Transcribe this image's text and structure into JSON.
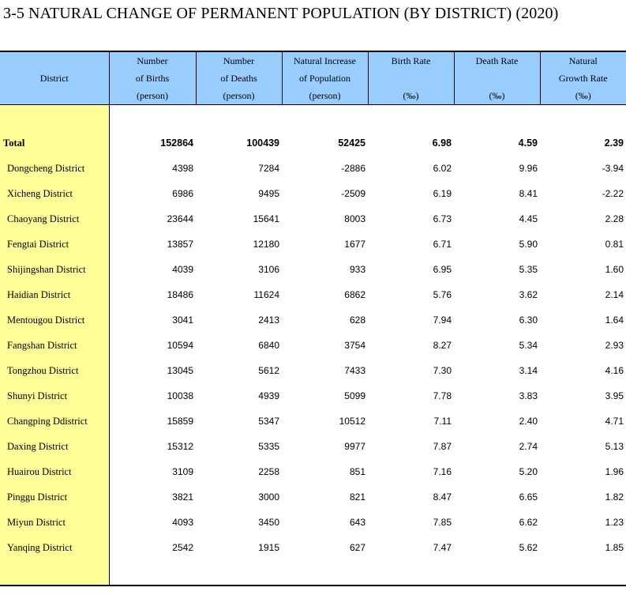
{
  "title": "3-5  NATURAL CHANGE OF PERMANENT POPULATION (BY DISTRICT) (2020)",
  "headers": [
    {
      "lines": [
        "District"
      ]
    },
    {
      "lines": [
        "Number",
        "of Births",
        "(person)"
      ]
    },
    {
      "lines": [
        "Number",
        "of Deaths",
        "(person)"
      ]
    },
    {
      "lines": [
        "Natural Increase",
        "of Population",
        "(person)"
      ]
    },
    {
      "lines": [
        "Birth Rate",
        "",
        "(‰)"
      ]
    },
    {
      "lines": [
        "Death Rate",
        "",
        "(‰)"
      ]
    },
    {
      "lines": [
        "Natural",
        "Growth Rate",
        "(‰)"
      ]
    }
  ],
  "total": {
    "district": "Total",
    "births": "152864",
    "deaths": "100439",
    "increase": "52425",
    "birth_rate": "6.98",
    "death_rate": "4.59",
    "growth_rate": "2.39"
  },
  "rows": [
    {
      "district": "Dongcheng District",
      "births": "4398",
      "deaths": "7284",
      "increase": "-2886",
      "birth_rate": "6.02",
      "death_rate": "9.96",
      "growth_rate": "-3.94"
    },
    {
      "district": "Xicheng District",
      "births": "6986",
      "deaths": "9495",
      "increase": "-2509",
      "birth_rate": "6.19",
      "death_rate": "8.41",
      "growth_rate": "-2.22"
    },
    {
      "district": "Chaoyang District",
      "births": "23644",
      "deaths": "15641",
      "increase": "8003",
      "birth_rate": "6.73",
      "death_rate": "4.45",
      "growth_rate": "2.28"
    },
    {
      "district": "Fengtai District",
      "births": "13857",
      "deaths": "12180",
      "increase": "1677",
      "birth_rate": "6.71",
      "death_rate": "5.90",
      "growth_rate": "0.81"
    },
    {
      "district": "Shijingshan District",
      "births": "4039",
      "deaths": "3106",
      "increase": "933",
      "birth_rate": "6.95",
      "death_rate": "5.35",
      "growth_rate": "1.60"
    },
    {
      "district": "Haidian District",
      "births": "18486",
      "deaths": "11624",
      "increase": "6862",
      "birth_rate": "5.76",
      "death_rate": "3.62",
      "growth_rate": "2.14"
    },
    {
      "district": "Mentougou District",
      "births": "3041",
      "deaths": "2413",
      "increase": "628",
      "birth_rate": "7.94",
      "death_rate": "6.30",
      "growth_rate": "1.64"
    },
    {
      "district": "Fangshan District",
      "births": "10594",
      "deaths": "6840",
      "increase": "3754",
      "birth_rate": "8.27",
      "death_rate": "5.34",
      "growth_rate": "2.93"
    },
    {
      "district": "Tongzhou District",
      "births": "13045",
      "deaths": "5612",
      "increase": "7433",
      "birth_rate": "7.30",
      "death_rate": "3.14",
      "growth_rate": "4.16"
    },
    {
      "district": "Shunyi District",
      "births": "10038",
      "deaths": "4939",
      "increase": "5099",
      "birth_rate": "7.78",
      "death_rate": "3.83",
      "growth_rate": "3.95"
    },
    {
      "district": "Changping Ddistrict",
      "births": "15859",
      "deaths": "5347",
      "increase": "10512",
      "birth_rate": "7.11",
      "death_rate": "2.40",
      "growth_rate": "4.71"
    },
    {
      "district": "Daxing District",
      "births": "15312",
      "deaths": "5335",
      "increase": "9977",
      "birth_rate": "7.87",
      "death_rate": "2.74",
      "growth_rate": "5.13"
    },
    {
      "district": "Huairou District",
      "births": "3109",
      "deaths": "2258",
      "increase": "851",
      "birth_rate": "7.16",
      "death_rate": "5.20",
      "growth_rate": "1.96"
    },
    {
      "district": "Pinggu District",
      "births": "3821",
      "deaths": "3000",
      "increase": "821",
      "birth_rate": "8.47",
      "death_rate": "6.65",
      "growth_rate": "1.82"
    },
    {
      "district": "Miyun District",
      "births": "4093",
      "deaths": "3450",
      "increase": "643",
      "birth_rate": "7.85",
      "death_rate": "6.62",
      "growth_rate": "1.23"
    },
    {
      "district": "Yanqing District",
      "births": "2542",
      "deaths": "1915",
      "increase": "627",
      "birth_rate": "7.47",
      "death_rate": "5.62",
      "growth_rate": "1.85"
    }
  ],
  "colors": {
    "header_bg": "#99ccff",
    "district_bg": "#ffff99"
  }
}
